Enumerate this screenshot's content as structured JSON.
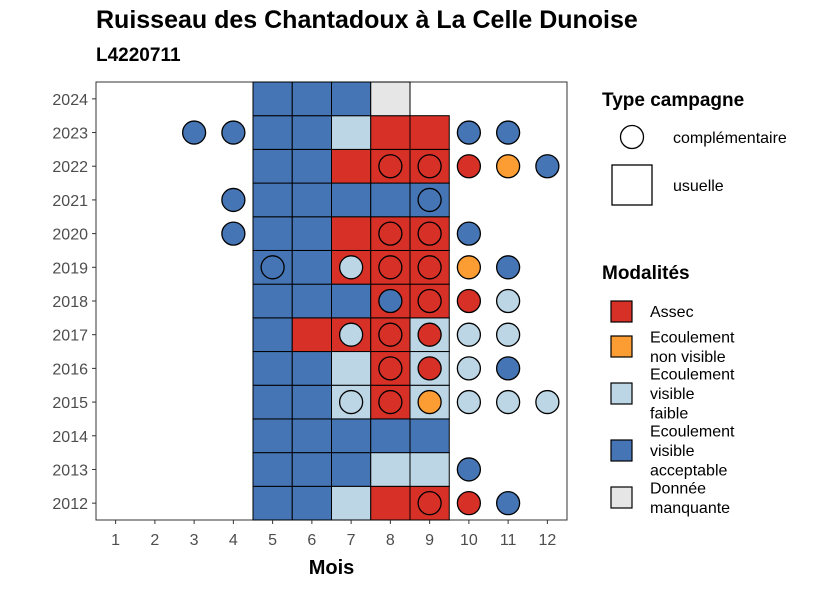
{
  "title": "Ruisseau des Chantadoux à La Celle Dunoise",
  "subtitle": "L4220711",
  "chart_data": {
    "type": "heatmap",
    "xlabel": "Mois",
    "ylabel": "",
    "x_ticks": [
      "1",
      "2",
      "3",
      "4",
      "5",
      "6",
      "7",
      "8",
      "9",
      "10",
      "11",
      "12"
    ],
    "y_ticks": [
      "2012",
      "2013",
      "2014",
      "2015",
      "2016",
      "2017",
      "2018",
      "2019",
      "2020",
      "2021",
      "2022",
      "2023",
      "2024"
    ],
    "legend_campagne_title": "Type campagne",
    "campagne_types": [
      {
        "key": "complementaire",
        "label": "complémentaire",
        "shape": "circle"
      },
      {
        "key": "usuelle",
        "label": "usuelle",
        "shape": "square"
      }
    ],
    "legend_modalite_title": "Modalités",
    "modalites": [
      {
        "key": "A",
        "label_lines": [
          "Assec"
        ],
        "color": "#d73027"
      },
      {
        "key": "N",
        "label_lines": [
          "Ecoulement",
          "non visible"
        ],
        "color": "#fc9d33"
      },
      {
        "key": "F",
        "label_lines": [
          "Ecoulement",
          "visible",
          "faible"
        ],
        "color": "#bcd6e6"
      },
      {
        "key": "V",
        "label_lines": [
          "Ecoulement",
          "visible",
          "acceptable"
        ],
        "color": "#4575b4"
      },
      {
        "key": "M",
        "label_lines": [
          "Donnée",
          "manquante"
        ],
        "color": "#e6e6e6"
      }
    ],
    "usuelle": [
      {
        "year": 2012,
        "months": [
          "V",
          "V",
          "F",
          "A",
          "A"
        ]
      },
      {
        "year": 2013,
        "months": [
          "V",
          "V",
          "V",
          "F",
          "F"
        ]
      },
      {
        "year": 2014,
        "months": [
          "V",
          "V",
          "V",
          "V",
          "V"
        ]
      },
      {
        "year": 2015,
        "months": [
          "V",
          "V",
          "F",
          "A",
          "F"
        ]
      },
      {
        "year": 2016,
        "months": [
          "V",
          "V",
          "F",
          "A",
          "F"
        ]
      },
      {
        "year": 2017,
        "months": [
          "V",
          "A",
          "A",
          "A",
          "F"
        ]
      },
      {
        "year": 2018,
        "months": [
          "V",
          "V",
          "V",
          "A",
          "A"
        ]
      },
      {
        "year": 2019,
        "months": [
          "V",
          "V",
          "A",
          "A",
          "A"
        ]
      },
      {
        "year": 2020,
        "months": [
          "V",
          "V",
          "A",
          "A",
          "A"
        ]
      },
      {
        "year": 2021,
        "months": [
          "V",
          "V",
          "V",
          "V",
          "V"
        ]
      },
      {
        "year": 2022,
        "months": [
          "V",
          "V",
          "A",
          "A",
          "A"
        ]
      },
      {
        "year": 2023,
        "months": [
          "V",
          "V",
          "F",
          "A",
          "A"
        ]
      },
      {
        "year": 2024,
        "months": [
          "V",
          "V",
          "V",
          "M",
          null
        ]
      }
    ],
    "usuelle_first_month": 5,
    "complementaire": [
      {
        "year": 2012,
        "month": 9,
        "m": "A"
      },
      {
        "year": 2012,
        "month": 10,
        "m": "A"
      },
      {
        "year": 2012,
        "month": 11,
        "m": "V"
      },
      {
        "year": 2013,
        "month": 10,
        "m": "V"
      },
      {
        "year": 2015,
        "month": 7,
        "m": "F"
      },
      {
        "year": 2015,
        "month": 8,
        "m": "A"
      },
      {
        "year": 2015,
        "month": 9,
        "m": "N"
      },
      {
        "year": 2015,
        "month": 10,
        "m": "F"
      },
      {
        "year": 2015,
        "month": 11,
        "m": "F"
      },
      {
        "year": 2015,
        "month": 12,
        "m": "F"
      },
      {
        "year": 2016,
        "month": 8,
        "m": "A"
      },
      {
        "year": 2016,
        "month": 9,
        "m": "A"
      },
      {
        "year": 2016,
        "month": 10,
        "m": "F"
      },
      {
        "year": 2016,
        "month": 11,
        "m": "V"
      },
      {
        "year": 2017,
        "month": 7,
        "m": "F"
      },
      {
        "year": 2017,
        "month": 8,
        "m": "A"
      },
      {
        "year": 2017,
        "month": 9,
        "m": "A"
      },
      {
        "year": 2017,
        "month": 10,
        "m": "F"
      },
      {
        "year": 2017,
        "month": 11,
        "m": "F"
      },
      {
        "year": 2018,
        "month": 8,
        "m": "V"
      },
      {
        "year": 2018,
        "month": 9,
        "m": "A"
      },
      {
        "year": 2018,
        "month": 10,
        "m": "A"
      },
      {
        "year": 2018,
        "month": 11,
        "m": "F"
      },
      {
        "year": 2019,
        "month": 5,
        "m": "V"
      },
      {
        "year": 2019,
        "month": 7,
        "m": "F"
      },
      {
        "year": 2019,
        "month": 8,
        "m": "A"
      },
      {
        "year": 2019,
        "month": 9,
        "m": "A"
      },
      {
        "year": 2019,
        "month": 10,
        "m": "N"
      },
      {
        "year": 2019,
        "month": 11,
        "m": "V"
      },
      {
        "year": 2020,
        "month": 4,
        "m": "V"
      },
      {
        "year": 2020,
        "month": 8,
        "m": "A"
      },
      {
        "year": 2020,
        "month": 9,
        "m": "A"
      },
      {
        "year": 2020,
        "month": 10,
        "m": "V"
      },
      {
        "year": 2021,
        "month": 4,
        "m": "V"
      },
      {
        "year": 2021,
        "month": 9,
        "m": "V"
      },
      {
        "year": 2022,
        "month": 8,
        "m": "A"
      },
      {
        "year": 2022,
        "month": 9,
        "m": "A"
      },
      {
        "year": 2022,
        "month": 10,
        "m": "A"
      },
      {
        "year": 2022,
        "month": 11,
        "m": "N"
      },
      {
        "year": 2022,
        "month": 12,
        "m": "V"
      },
      {
        "year": 2023,
        "month": 3,
        "m": "V"
      },
      {
        "year": 2023,
        "month": 4,
        "m": "V"
      },
      {
        "year": 2023,
        "month": 10,
        "m": "V"
      },
      {
        "year": 2023,
        "month": 11,
        "m": "V"
      }
    ]
  }
}
